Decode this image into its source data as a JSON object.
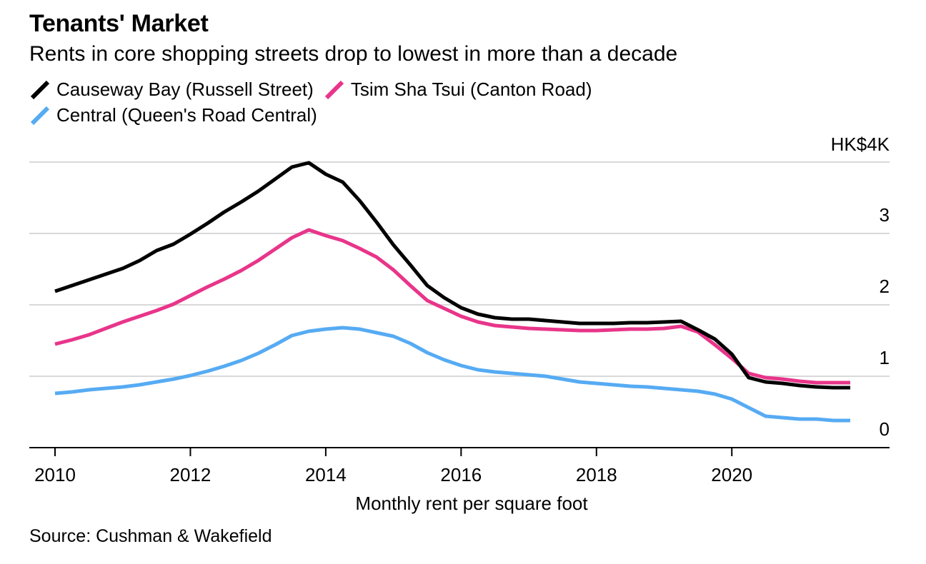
{
  "chart_data": {
    "type": "line",
    "title": "Tenants' Market",
    "subtitle": "Rents in core shopping streets drop to lowest in more than a decade",
    "xlabel": "Monthly rent per square foot",
    "ylabel": "",
    "y_unit_label": "HK$4K",
    "source": "Source: Cushman & Wakefield",
    "xlim": [
      2010,
      2022.2
    ],
    "ylim": [
      0,
      4
    ],
    "x_ticks": [
      2010,
      2012,
      2014,
      2016,
      2018,
      2020
    ],
    "x_tick_labels": [
      "2010",
      "2012",
      "2014",
      "2016",
      "2018",
      "2020"
    ],
    "y_ticks": [
      0,
      1,
      2,
      3,
      4
    ],
    "y_tick_labels": [
      "0",
      "1",
      "2",
      "3",
      "HK$4K"
    ],
    "legend_position": "top-left",
    "series": [
      {
        "name": "Causeway Bay (Russell Street)",
        "color": "#000000",
        "x": [
          2010,
          2010.25,
          2010.5,
          2010.75,
          2011,
          2011.25,
          2011.5,
          2011.75,
          2012,
          2012.25,
          2012.5,
          2012.75,
          2013,
          2013.25,
          2013.5,
          2013.75,
          2014,
          2014.25,
          2014.5,
          2014.75,
          2015,
          2015.25,
          2015.5,
          2015.75,
          2016,
          2016.25,
          2016.5,
          2016.75,
          2017,
          2017.25,
          2017.5,
          2017.75,
          2018,
          2018.25,
          2018.5,
          2018.75,
          2019,
          2019.25,
          2019.5,
          2019.75,
          2020,
          2020.25,
          2020.5,
          2020.75,
          2021,
          2021.25,
          2021.5,
          2021.75
        ],
        "values": [
          2.19,
          2.27,
          2.35,
          2.43,
          2.51,
          2.62,
          2.76,
          2.85,
          2.99,
          3.14,
          3.3,
          3.44,
          3.59,
          3.76,
          3.93,
          3.99,
          3.83,
          3.72,
          3.46,
          3.16,
          2.84,
          2.56,
          2.27,
          2.1,
          1.96,
          1.87,
          1.82,
          1.8,
          1.8,
          1.78,
          1.76,
          1.74,
          1.74,
          1.74,
          1.75,
          1.75,
          1.76,
          1.77,
          1.65,
          1.52,
          1.31,
          0.98,
          0.92,
          0.9,
          0.87,
          0.85,
          0.84,
          0.84
        ]
      },
      {
        "name": "Tsim Sha Tsui (Canton Road)",
        "color": "#e8358a",
        "x": [
          2010,
          2010.25,
          2010.5,
          2010.75,
          2011,
          2011.25,
          2011.5,
          2011.75,
          2012,
          2012.25,
          2012.5,
          2012.75,
          2013,
          2013.25,
          2013.5,
          2013.75,
          2014,
          2014.25,
          2014.5,
          2014.75,
          2015,
          2015.25,
          2015.5,
          2015.75,
          2016,
          2016.25,
          2016.5,
          2016.75,
          2017,
          2017.25,
          2017.5,
          2017.75,
          2018,
          2018.25,
          2018.5,
          2018.75,
          2019,
          2019.25,
          2019.5,
          2019.75,
          2020,
          2020.25,
          2020.5,
          2020.75,
          2021,
          2021.25,
          2021.5,
          2021.75
        ],
        "values": [
          1.45,
          1.51,
          1.58,
          1.67,
          1.76,
          1.84,
          1.92,
          2.01,
          2.13,
          2.25,
          2.36,
          2.48,
          2.62,
          2.78,
          2.94,
          3.05,
          2.97,
          2.9,
          2.79,
          2.67,
          2.49,
          2.27,
          2.06,
          1.95,
          1.84,
          1.76,
          1.71,
          1.69,
          1.67,
          1.66,
          1.65,
          1.64,
          1.64,
          1.65,
          1.66,
          1.66,
          1.67,
          1.7,
          1.62,
          1.44,
          1.25,
          1.04,
          0.98,
          0.96,
          0.93,
          0.91,
          0.91,
          0.91
        ]
      },
      {
        "name": "Central (Queen's Road Central)",
        "color": "#56abf3",
        "x": [
          2010,
          2010.25,
          2010.5,
          2010.75,
          2011,
          2011.25,
          2011.5,
          2011.75,
          2012,
          2012.25,
          2012.5,
          2012.75,
          2013,
          2013.25,
          2013.5,
          2013.75,
          2014,
          2014.25,
          2014.5,
          2014.75,
          2015,
          2015.25,
          2015.5,
          2015.75,
          2016,
          2016.25,
          2016.5,
          2016.75,
          2017,
          2017.25,
          2017.5,
          2017.75,
          2018,
          2018.25,
          2018.5,
          2018.75,
          2019,
          2019.25,
          2019.5,
          2019.75,
          2020,
          2020.25,
          2020.5,
          2020.75,
          2021,
          2021.25,
          2021.5,
          2021.75
        ],
        "values": [
          0.76,
          0.78,
          0.81,
          0.83,
          0.85,
          0.88,
          0.92,
          0.96,
          1.01,
          1.07,
          1.14,
          1.22,
          1.32,
          1.44,
          1.57,
          1.63,
          1.66,
          1.68,
          1.66,
          1.61,
          1.56,
          1.46,
          1.33,
          1.23,
          1.15,
          1.09,
          1.06,
          1.04,
          1.02,
          1.0,
          0.96,
          0.92,
          0.9,
          0.88,
          0.86,
          0.85,
          0.83,
          0.81,
          0.79,
          0.75,
          0.68,
          0.56,
          0.44,
          0.42,
          0.4,
          0.4,
          0.38,
          0.38
        ]
      }
    ]
  }
}
